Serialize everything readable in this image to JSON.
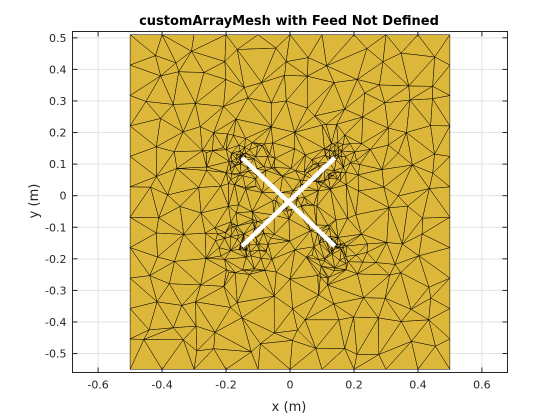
{
  "title": "customArrayMesh with Feed Not Defined",
  "xlabel": "x (m)",
  "ylabel": "y (m)",
  "xlim": [
    -0.68,
    0.68
  ],
  "ylim": [
    -0.56,
    0.52
  ],
  "x_ticks": [
    "-0.6",
    "-0.4",
    "-0.2",
    "0",
    "0.2",
    "0.4",
    "0.6"
  ],
  "y_ticks": [
    "0.5",
    "0.4",
    "0.3",
    "0.2",
    "0.1",
    "0",
    "-0.1",
    "-0.2",
    "-0.3",
    "-0.4",
    "-0.5"
  ],
  "grid": true,
  "colors": {
    "mesh_fill": "#DDB73A",
    "mesh_edges": "#000000",
    "cutout": "#FFFFFF",
    "grid": "#E3E3E3",
    "axes": "#262626"
  },
  "mesh": {
    "x_range": [
      -0.5,
      0.5
    ],
    "y_range": [
      -0.55,
      0.51
    ]
  },
  "cutouts": [
    {
      "name": "slot-1",
      "from": [
        -0.15,
        -0.16
      ],
      "to": [
        0.14,
        0.12
      ]
    },
    {
      "name": "slot-2",
      "from": [
        -0.15,
        0.12
      ],
      "to": [
        0.14,
        -0.16
      ]
    }
  ]
}
